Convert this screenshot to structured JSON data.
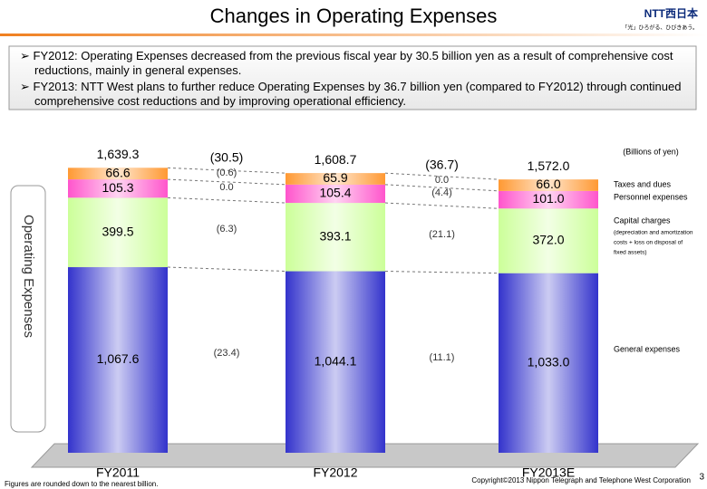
{
  "header": {
    "title": "Changes in Operating Expenses",
    "logo": "NTT西日本",
    "tagline": "「光」ひろがる、ひびきあう。"
  },
  "bullets": [
    "FY2012: Operating Expenses decreased from the previous fiscal year by 30.5 billion yen as a result of comprehensive cost reductions, mainly in general expenses.",
    "FY2013: NTT West plans to further reduce Operating Expenses by 36.7 billion yen (compared to FY2012) through continued comprehensive cost reductions and by improving operational efficiency."
  ],
  "chart_data": {
    "type": "stacked-bar",
    "axis_label": "Operating Expenses",
    "unit": "(Billions of yen)",
    "categories": [
      "FY2011",
      "FY2012",
      "FY2013E"
    ],
    "series": [
      {
        "name": "General expenses",
        "color": "#3333cc",
        "values": [
          1067.6,
          1044.1,
          1033.0
        ],
        "value_labels": [
          "1,067.6",
          "1,044.1",
          "1,033.0"
        ]
      },
      {
        "name": "Capital charges",
        "note_lines": [
          "(depreciation and amortization",
          "costs + loss on disposal of",
          "fixed assets)"
        ],
        "color": "#ccff99",
        "values": [
          399.5,
          393.1,
          372.0
        ],
        "value_labels": [
          "399.5",
          "393.1",
          "372.0"
        ]
      },
      {
        "name": "Personnel expenses",
        "color": "#ff55cc",
        "values": [
          105.3,
          105.4,
          101.0
        ],
        "value_labels": [
          "105.3",
          "105.4",
          "101.0"
        ]
      },
      {
        "name": "Taxes and dues",
        "color": "#ff9933",
        "values": [
          66.6,
          65.9,
          66.0
        ],
        "value_labels": [
          "66.6",
          "65.9",
          "66.0"
        ]
      }
    ],
    "totals": [
      1639.3,
      1608.7,
      1572.0
    ],
    "total_labels": [
      "1,639.3",
      "1,608.7",
      "1,572.0"
    ],
    "changes": [
      {
        "total": -30.5,
        "total_label": "(30.5)",
        "values": [
          -23.4,
          -6.3,
          0.0,
          -0.6
        ],
        "value_labels": [
          "(23.4)",
          "(6.3)",
          "0.0",
          "(0.6)"
        ]
      },
      {
        "total": -36.7,
        "total_label": "(36.7)",
        "values": [
          -11.1,
          -21.1,
          -4.4,
          0.0
        ],
        "value_labels": [
          "(11.1)",
          "(21.1)",
          "(4.4)",
          "0.0"
        ]
      }
    ]
  },
  "footer": {
    "note": "Figures are rounded down to the nearest billion.",
    "copyright": "Copyright©2013 Nippon Telegraph and Telephone West Corporation",
    "page": "3"
  }
}
